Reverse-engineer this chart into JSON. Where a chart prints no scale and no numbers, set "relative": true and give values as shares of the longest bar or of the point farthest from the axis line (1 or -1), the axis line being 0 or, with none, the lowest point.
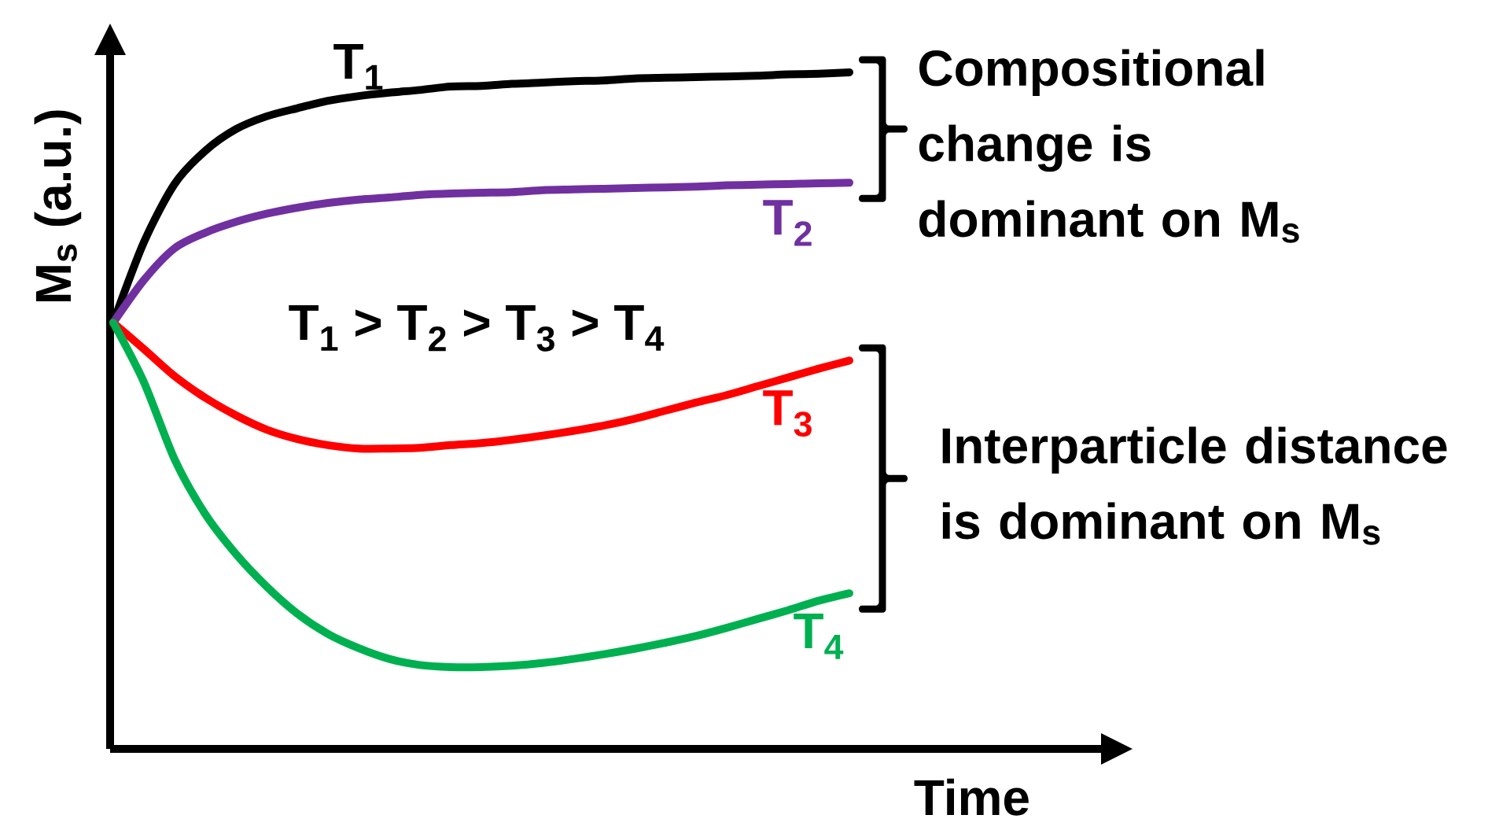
{
  "chart_data": {
    "type": "line",
    "relative": true,
    "xlabel": "Time",
    "ylabel": "M$_{s}$ (a.u.)",
    "categories": [
      null,
      null,
      null,
      null,
      null,
      null,
      null,
      null,
      null,
      null,
      null,
      null,
      null,
      null,
      null,
      null,
      null,
      null,
      null,
      null,
      null,
      null,
      null,
      null,
      null
    ],
    "series": [
      {
        "name": "T$_{1}$",
        "color": "#000000",
        "values": [
          0.63,
          0.749,
          0.835,
          0.884,
          0.916,
          0.935,
          0.947,
          0.958,
          0.965,
          0.97,
          0.974,
          0.979,
          0.98,
          0.983,
          0.985,
          0.987,
          0.988,
          0.991,
          0.992,
          0.993,
          0.994,
          0.995,
          0.997,
          0.998,
          1.0
        ]
      },
      {
        "name": "T$_{2}$",
        "color": "#7030a0",
        "values": [
          0.63,
          0.693,
          0.74,
          0.763,
          0.779,
          0.791,
          0.8,
          0.807,
          0.812,
          0.815,
          0.819,
          0.821,
          0.822,
          0.823,
          0.826,
          0.827,
          0.828,
          0.829,
          0.83,
          0.831,
          0.833,
          0.834,
          0.835,
          0.836,
          0.837
        ]
      },
      {
        "name": "T$_{3}$",
        "color": "#ff0000",
        "values": [
          0.63,
          0.591,
          0.551,
          0.519,
          0.493,
          0.472,
          0.458,
          0.449,
          0.444,
          0.444,
          0.445,
          0.449,
          0.452,
          0.457,
          0.463,
          0.47,
          0.478,
          0.488,
          0.5,
          0.512,
          0.523,
          0.536,
          0.549,
          0.562,
          0.574
        ]
      },
      {
        "name": "T$_{4}$",
        "color": "#00b050",
        "values": [
          0.63,
          0.542,
          0.428,
          0.347,
          0.288,
          0.24,
          0.2,
          0.17,
          0.149,
          0.133,
          0.124,
          0.121,
          0.121,
          0.123,
          0.127,
          0.133,
          0.14,
          0.148,
          0.157,
          0.167,
          0.179,
          0.192,
          0.205,
          0.219,
          0.23
        ]
      }
    ],
    "annotations": [
      "T$_{1}$ > T$_{2}$ > T$_{3}$ > T$_{4}$",
      "Compositional change is dominant on M$_{s}$",
      "Interparticle distance is dominant on M$_{s}$"
    ]
  }
}
